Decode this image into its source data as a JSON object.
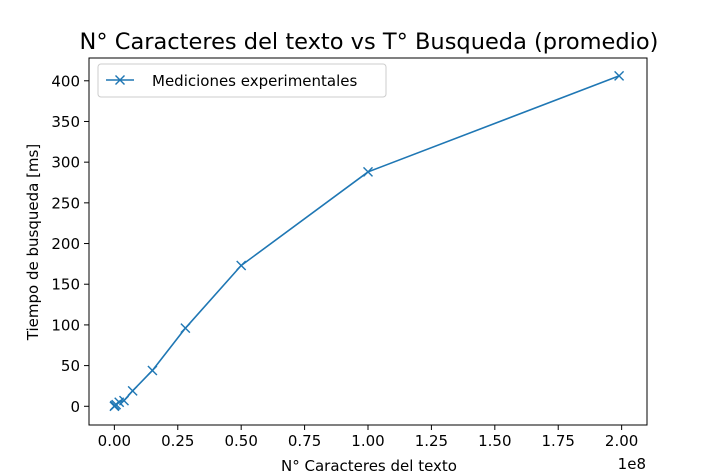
{
  "chart_data": {
    "type": "line",
    "title": "N° Caracteres del texto vs T° Busqueda (promedio)",
    "xlabel": "N° Caracteres del texto",
    "ylabel": "Tiempo de busqueda [ms]",
    "x_offset_label": "1e8",
    "x_scale": 100000000,
    "xlim": [
      -0.1,
      2.1
    ],
    "ylim": [
      -23,
      428
    ],
    "xticks": [
      0.0,
      0.25,
      0.5,
      0.75,
      1.0,
      1.25,
      1.5,
      1.75,
      2.0
    ],
    "xtick_labels": [
      "0.00",
      "0.25",
      "0.50",
      "0.75",
      "1.00",
      "1.25",
      "1.50",
      "1.75",
      "2.00"
    ],
    "yticks": [
      0,
      50,
      100,
      150,
      200,
      250,
      300,
      350,
      400
    ],
    "ytick_labels": [
      "0",
      "50",
      "100",
      "150",
      "200",
      "250",
      "300",
      "350",
      "400"
    ],
    "grid": false,
    "legend_position": "upper-left",
    "series": [
      {
        "name": "Mediciones experimentales",
        "color": "#1f77b4",
        "marker": "x",
        "x": [
          0.0002,
          0.002,
          0.007,
          0.019,
          0.038,
          0.072,
          0.15,
          0.28,
          0.5,
          1.0,
          1.99
        ],
        "y": [
          0,
          1,
          2,
          5,
          7,
          19,
          44,
          96,
          173,
          288,
          406
        ]
      }
    ]
  }
}
